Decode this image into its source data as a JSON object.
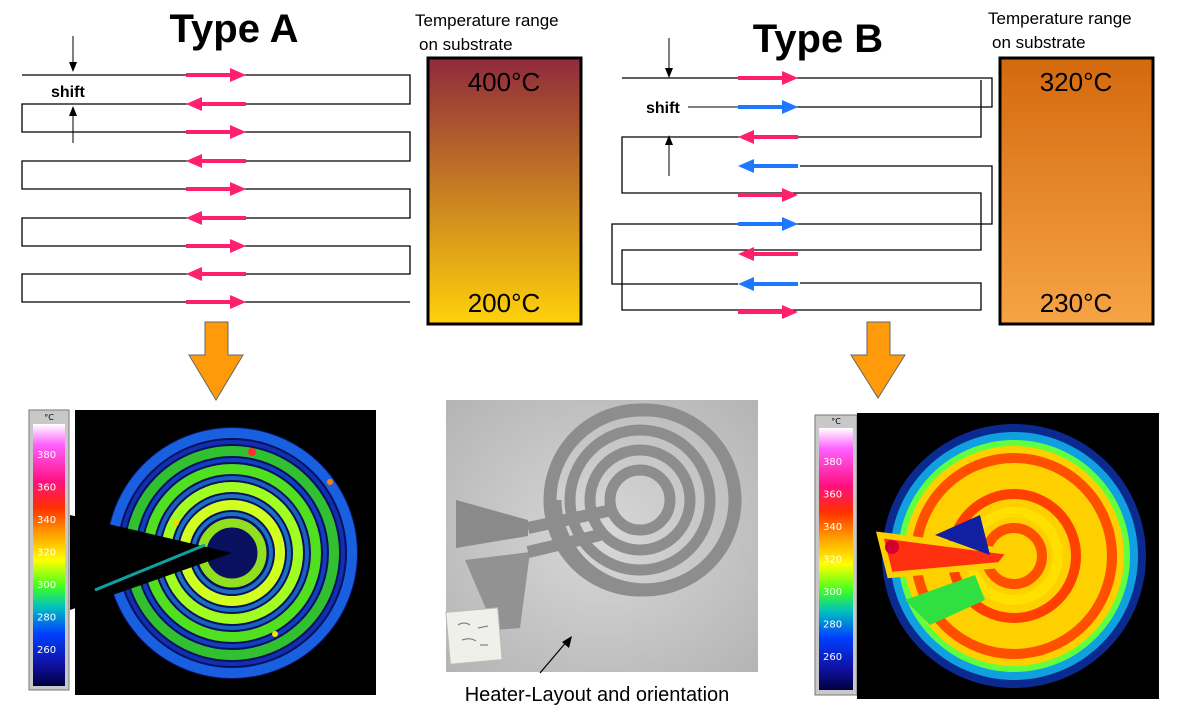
{
  "type_a": {
    "title": "Type A",
    "range_header_line1": "Temperature range",
    "range_header_line2": "on substrate",
    "temp_high": "400°C",
    "temp_low": "200°C",
    "shift_label": "shift",
    "colors": {
      "bar_top": "#8f2a3c",
      "bar_bottom": "#ffd20a",
      "arrow": "#ff1f6e"
    }
  },
  "type_b": {
    "title": "Type B",
    "range_header_line1": "Temperature range",
    "range_header_line2": "on substrate",
    "temp_high": "320°C",
    "temp_low": "230°C",
    "shift_label": "shift",
    "colors": {
      "bar_top": "#d4690f",
      "bar_bottom": "#f6a445",
      "arrow_pink": "#ff1f6e",
      "arrow_blue": "#1e78ff"
    }
  },
  "thermal_scale": {
    "unit": "°C",
    "ticks": [
      "380",
      "360",
      "340",
      "320",
      "300",
      "280",
      "260"
    ]
  },
  "photo": {
    "caption": "Heater-Layout and orientation"
  },
  "flow_arrow_color": "#ff9a0a"
}
